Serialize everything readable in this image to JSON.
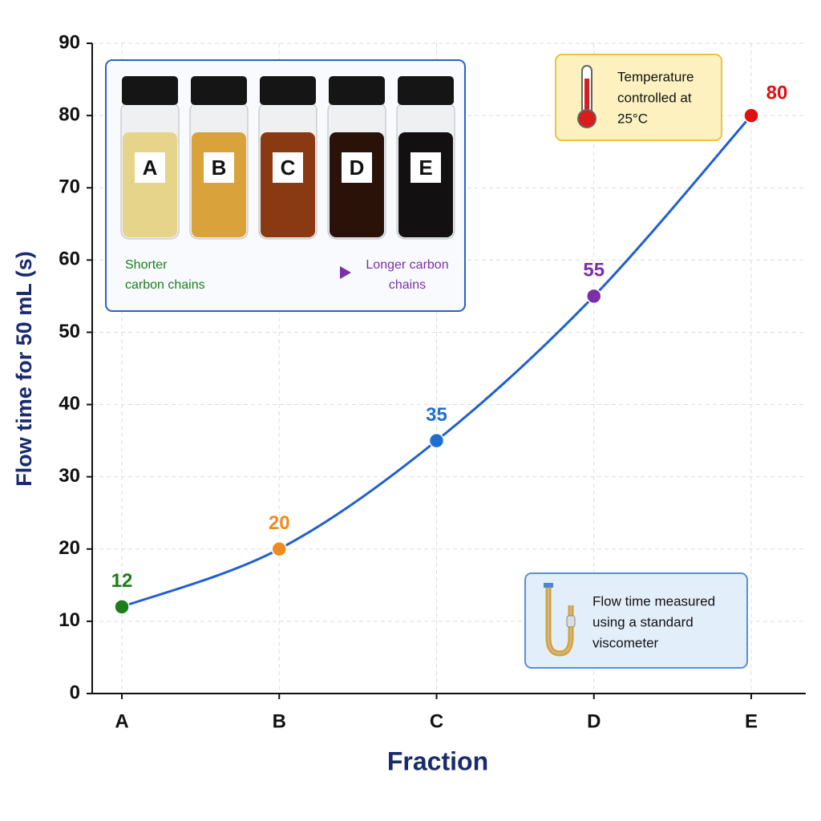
{
  "chart_data": {
    "type": "line",
    "x_label": "Fraction",
    "y_label": "Flow time for 50 mL (s)",
    "categories": [
      "A",
      "B",
      "C",
      "D",
      "E"
    ],
    "values": [
      12,
      20,
      35,
      55,
      80
    ],
    "color": "#1f5fd0",
    "point_colors": [
      "#1a7f1a",
      "#f08a1c",
      "#1f6fd0",
      "#7b2fa8",
      "#e01010"
    ],
    "ylim": [
      0,
      90
    ],
    "yticks": [
      0,
      10,
      20,
      30,
      40,
      50,
      60,
      70,
      80,
      90
    ],
    "grid": true,
    "annotations": {
      "shorter": [
        "Shorter",
        "carbon chains"
      ],
      "longer": [
        "Longer carbon",
        "chains"
      ],
      "temperature": [
        "Temperature",
        "controlled at",
        "25°C"
      ],
      "viscometer": [
        "Flow time measured",
        "using a standard",
        "viscometer"
      ]
    }
  }
}
